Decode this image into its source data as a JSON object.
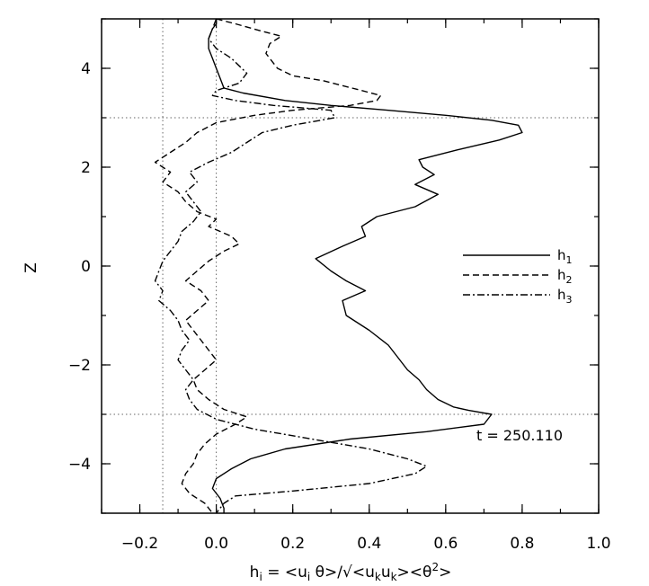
{
  "chart_data": {
    "type": "line",
    "xlabel": {
      "lead": "h",
      "lead_sub": "i",
      "eq": " = <u",
      "u_sub": "i",
      "theta": " θ>/√<u",
      "uk1_sub": "k",
      "u2": "u",
      "uk2_sub": "k",
      "tail": "><θ",
      "tail_sup": "2",
      "close": ">"
    },
    "ylabel": "Z",
    "xlim": [
      -0.3,
      1.0
    ],
    "ylim": [
      -5,
      5
    ],
    "x_ticks": [
      -0.2,
      0.0,
      0.2,
      0.4,
      0.6,
      0.8,
      1.0
    ],
    "x_tick_labels": [
      "−0.2",
      "0.0",
      "0.2",
      "0.4",
      "0.6",
      "0.8",
      "1.0"
    ],
    "y_ticks": [
      -4,
      -2,
      0,
      2,
      4
    ],
    "y_tick_labels": [
      "−4",
      "−2",
      "0",
      "2",
      "4"
    ],
    "reference_lines": {
      "vertical": [
        -0.14,
        0.0
      ],
      "horizontal": [
        3,
        -3
      ]
    },
    "annotation": "t = 250.110",
    "legend_position": "right",
    "series": [
      {
        "name": "h",
        "name_sub": "1",
        "style": "solid",
        "points": [
          [
            0.0,
            5.0
          ],
          [
            0.0,
            4.9
          ],
          [
            -0.01,
            4.8
          ],
          [
            -0.02,
            4.6
          ],
          [
            -0.02,
            4.4
          ],
          [
            -0.01,
            4.2
          ],
          [
            0.0,
            4.0
          ],
          [
            0.01,
            3.8
          ],
          [
            0.02,
            3.6
          ],
          [
            0.07,
            3.5
          ],
          [
            0.18,
            3.35
          ],
          [
            0.3,
            3.25
          ],
          [
            0.45,
            3.15
          ],
          [
            0.6,
            3.05
          ],
          [
            0.72,
            2.95
          ],
          [
            0.79,
            2.85
          ],
          [
            0.8,
            2.7
          ],
          [
            0.74,
            2.55
          ],
          [
            0.63,
            2.35
          ],
          [
            0.53,
            2.15
          ],
          [
            0.54,
            2.0
          ],
          [
            0.57,
            1.85
          ],
          [
            0.52,
            1.65
          ],
          [
            0.58,
            1.45
          ],
          [
            0.52,
            1.2
          ],
          [
            0.42,
            1.0
          ],
          [
            0.38,
            0.8
          ],
          [
            0.39,
            0.6
          ],
          [
            0.33,
            0.4
          ],
          [
            0.26,
            0.15
          ],
          [
            0.3,
            -0.1
          ],
          [
            0.34,
            -0.3
          ],
          [
            0.39,
            -0.5
          ],
          [
            0.33,
            -0.7
          ],
          [
            0.34,
            -1.0
          ],
          [
            0.4,
            -1.3
          ],
          [
            0.45,
            -1.6
          ],
          [
            0.48,
            -1.9
          ],
          [
            0.5,
            -2.1
          ],
          [
            0.53,
            -2.3
          ],
          [
            0.55,
            -2.5
          ],
          [
            0.58,
            -2.7
          ],
          [
            0.62,
            -2.85
          ],
          [
            0.66,
            -2.92
          ],
          [
            0.72,
            -3.0
          ],
          [
            0.7,
            -3.2
          ],
          [
            0.55,
            -3.35
          ],
          [
            0.35,
            -3.5
          ],
          [
            0.18,
            -3.7
          ],
          [
            0.09,
            -3.9
          ],
          [
            0.04,
            -4.1
          ],
          [
            0.0,
            -4.3
          ],
          [
            -0.01,
            -4.5
          ],
          [
            0.01,
            -4.7
          ],
          [
            0.02,
            -4.9
          ],
          [
            0.02,
            -5.0
          ]
        ]
      },
      {
        "name": "h",
        "name_sub": "2",
        "style": "dashed",
        "points": [
          [
            0.0,
            5.0
          ],
          [
            0.05,
            4.9
          ],
          [
            0.12,
            4.75
          ],
          [
            0.17,
            4.65
          ],
          [
            0.14,
            4.5
          ],
          [
            0.13,
            4.3
          ],
          [
            0.16,
            4.0
          ],
          [
            0.2,
            3.85
          ],
          [
            0.28,
            3.75
          ],
          [
            0.33,
            3.65
          ],
          [
            0.38,
            3.55
          ],
          [
            0.43,
            3.45
          ],
          [
            0.42,
            3.35
          ],
          [
            0.35,
            3.25
          ],
          [
            0.2,
            3.15
          ],
          [
            0.1,
            3.05
          ],
          [
            0.0,
            2.9
          ],
          [
            -0.05,
            2.7
          ],
          [
            -0.08,
            2.5
          ],
          [
            -0.12,
            2.3
          ],
          [
            -0.16,
            2.1
          ],
          [
            -0.12,
            1.9
          ],
          [
            -0.14,
            1.7
          ],
          [
            -0.1,
            1.5
          ],
          [
            -0.08,
            1.3
          ],
          [
            -0.05,
            1.1
          ],
          [
            0.0,
            0.95
          ],
          [
            -0.02,
            0.8
          ],
          [
            0.04,
            0.6
          ],
          [
            0.06,
            0.45
          ],
          [
            0.02,
            0.3
          ],
          [
            -0.02,
            0.1
          ],
          [
            -0.05,
            -0.1
          ],
          [
            -0.08,
            -0.3
          ],
          [
            -0.04,
            -0.5
          ],
          [
            -0.02,
            -0.7
          ],
          [
            -0.05,
            -0.9
          ],
          [
            -0.08,
            -1.1
          ],
          [
            -0.06,
            -1.3
          ],
          [
            -0.04,
            -1.5
          ],
          [
            -0.02,
            -1.7
          ],
          [
            0.0,
            -1.9
          ],
          [
            -0.03,
            -2.1
          ],
          [
            -0.06,
            -2.3
          ],
          [
            -0.05,
            -2.5
          ],
          [
            -0.02,
            -2.7
          ],
          [
            0.02,
            -2.9
          ],
          [
            0.08,
            -3.05
          ],
          [
            0.05,
            -3.2
          ],
          [
            0.0,
            -3.4
          ],
          [
            -0.03,
            -3.6
          ],
          [
            -0.05,
            -3.8
          ],
          [
            -0.06,
            -4.0
          ],
          [
            -0.08,
            -4.2
          ],
          [
            -0.09,
            -4.4
          ],
          [
            -0.07,
            -4.6
          ],
          [
            -0.03,
            -4.8
          ],
          [
            -0.01,
            -5.0
          ]
        ]
      },
      {
        "name": "h",
        "name_sub": "3",
        "style": "dashdot",
        "points": [
          [
            0.0,
            5.0
          ],
          [
            -0.01,
            4.8
          ],
          [
            -0.02,
            4.6
          ],
          [
            0.0,
            4.4
          ],
          [
            0.04,
            4.2
          ],
          [
            0.08,
            3.9
          ],
          [
            0.06,
            3.7
          ],
          [
            0.0,
            3.55
          ],
          [
            -0.01,
            3.45
          ],
          [
            0.05,
            3.35
          ],
          [
            0.15,
            3.25
          ],
          [
            0.3,
            3.15
          ],
          [
            0.31,
            3.0
          ],
          [
            0.2,
            2.85
          ],
          [
            0.12,
            2.7
          ],
          [
            0.08,
            2.5
          ],
          [
            0.04,
            2.3
          ],
          [
            -0.02,
            2.1
          ],
          [
            -0.07,
            1.9
          ],
          [
            -0.05,
            1.7
          ],
          [
            -0.08,
            1.5
          ],
          [
            -0.06,
            1.3
          ],
          [
            -0.04,
            1.1
          ],
          [
            -0.06,
            0.9
          ],
          [
            -0.09,
            0.7
          ],
          [
            -0.1,
            0.5
          ],
          [
            -0.12,
            0.3
          ],
          [
            -0.14,
            0.1
          ],
          [
            -0.15,
            -0.1
          ],
          [
            -0.16,
            -0.3
          ],
          [
            -0.14,
            -0.5
          ],
          [
            -0.15,
            -0.7
          ],
          [
            -0.12,
            -0.9
          ],
          [
            -0.1,
            -1.1
          ],
          [
            -0.09,
            -1.3
          ],
          [
            -0.07,
            -1.5
          ],
          [
            -0.09,
            -1.7
          ],
          [
            -0.1,
            -1.9
          ],
          [
            -0.08,
            -2.1
          ],
          [
            -0.06,
            -2.3
          ],
          [
            -0.08,
            -2.5
          ],
          [
            -0.07,
            -2.7
          ],
          [
            -0.05,
            -2.9
          ],
          [
            0.0,
            -3.1
          ],
          [
            0.1,
            -3.3
          ],
          [
            0.25,
            -3.5
          ],
          [
            0.4,
            -3.7
          ],
          [
            0.5,
            -3.9
          ],
          [
            0.55,
            -4.05
          ],
          [
            0.52,
            -4.2
          ],
          [
            0.4,
            -4.4
          ],
          [
            0.2,
            -4.55
          ],
          [
            0.05,
            -4.65
          ],
          [
            0.02,
            -4.8
          ],
          [
            0.0,
            -5.0
          ]
        ]
      }
    ]
  }
}
